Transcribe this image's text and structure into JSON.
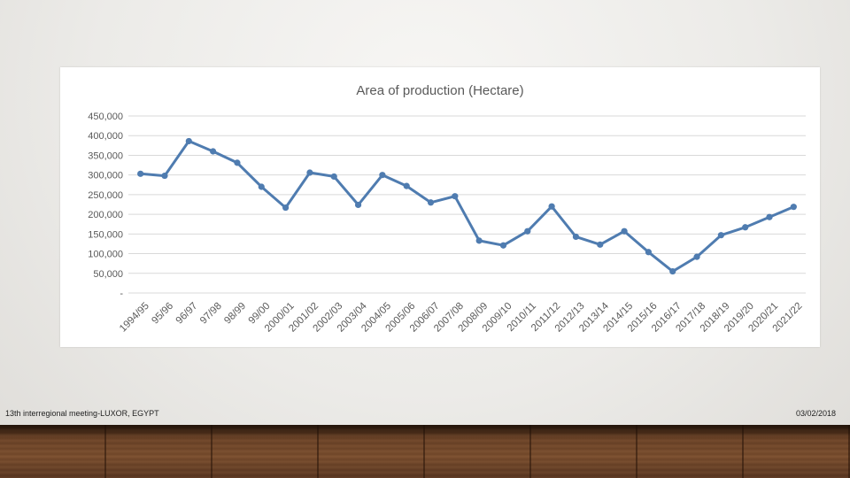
{
  "chart_data": {
    "type": "line",
    "title": "Area of production (Hectare)",
    "xlabel": "",
    "ylabel": "",
    "categories": [
      "1994/95",
      "95/96",
      "96/97",
      "97/98",
      "98/99",
      "99/00",
      "2000/01",
      "2001/02",
      "2002/03",
      "2003/04",
      "2004/05",
      "2005/06",
      "2006/07",
      "2007/08",
      "2008/09",
      "2009/10",
      "2010/11",
      "2011/12",
      "2012/13",
      "2013/14",
      "2014/15",
      "2015/16",
      "2016/17",
      "2017/18",
      "2018/19",
      "2019/20",
      "2020/21",
      "2021/22"
    ],
    "series": [
      {
        "values": [
          303000,
          298000,
          386000,
          360000,
          331000,
          270000,
          217000,
          306000,
          296000,
          224000,
          300000,
          272000,
          230000,
          246000,
          133000,
          121000,
          157000,
          220000,
          143000,
          123000,
          157000,
          104000,
          55000,
          92000,
          147000,
          167000,
          193000,
          219000
        ]
      }
    ],
    "ylim": [
      0,
      450000
    ],
    "yticks": [
      0,
      50000,
      100000,
      150000,
      200000,
      250000,
      300000,
      350000,
      400000,
      450000
    ],
    "ytick_labels": [
      "-",
      "50,000",
      "100,000",
      "150,000",
      "200,000",
      "250,000",
      "300,000",
      "350,000",
      "400,000",
      "450,000"
    ],
    "grid": true,
    "line_color": "#4f7cb0",
    "grid_color": "#d9d9d9"
  },
  "footer": {
    "left": "13th interregional meeting-LUXOR, EGYPT",
    "right": "03/02/2018"
  }
}
